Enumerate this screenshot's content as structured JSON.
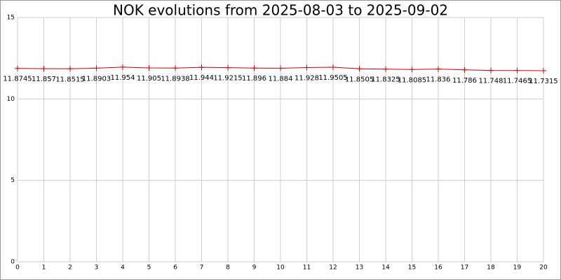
{
  "chart_data": {
    "type": "line",
    "title": "NOK evolutions from 2025-08-03 to 2025-09-02",
    "x": [
      0,
      1,
      2,
      3,
      4,
      5,
      6,
      7,
      8,
      9,
      10,
      11,
      12,
      13,
      14,
      15,
      16,
      17,
      18,
      19,
      20
    ],
    "series": [
      {
        "color": "#cc0000",
        "values": [
          11.8745,
          11.857,
          11.8515,
          11.8903,
          11.954,
          11.905,
          11.8938,
          11.944,
          11.9215,
          11.896,
          11.884,
          11.928,
          11.9505,
          11.8505,
          11.8325,
          11.8085,
          11.836,
          11.786,
          11.748,
          11.7465,
          11.7315
        ]
      }
    ],
    "xlim": [
      0,
      20
    ],
    "xticks": [
      0,
      1,
      2,
      3,
      4,
      5,
      6,
      7,
      8,
      9,
      10,
      11,
      12,
      13,
      14,
      15,
      16,
      17,
      18,
      19,
      20
    ],
    "ylim": [
      0,
      15
    ],
    "yticks": [
      0,
      5,
      10,
      15
    ],
    "grid": true
  }
}
